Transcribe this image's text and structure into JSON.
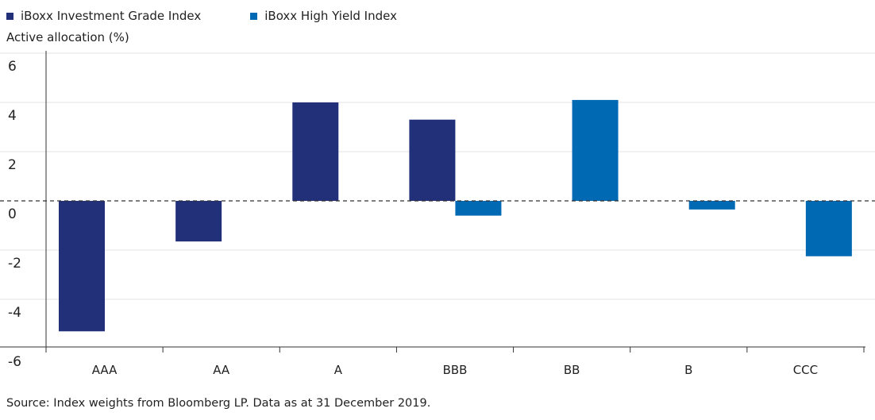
{
  "chart_data": {
    "type": "bar",
    "title": "",
    "xlabel": "",
    "ylabel": "Active allocation (%)",
    "categories": [
      "AAA",
      "AA",
      "A",
      "BBB",
      "BB",
      "B",
      "CCC"
    ],
    "series": [
      {
        "name": "iBoxx Investment Grade Index",
        "color": "#22307a",
        "values": [
          -5.3,
          -1.65,
          4.0,
          3.3,
          null,
          null,
          null
        ]
      },
      {
        "name": "iBoxx High Yield Index",
        "color": "#0069b4",
        "values": [
          null,
          null,
          null,
          -0.6,
          4.1,
          -0.35,
          -2.25
        ]
      }
    ],
    "ylim": [
      -6,
      6
    ],
    "yticks": [
      6,
      4,
      2,
      0,
      -2,
      -4,
      -6
    ],
    "reference_line": {
      "y": 0,
      "style": "dashed"
    },
    "grid": true,
    "legend": "top-left"
  },
  "source_note": "Source: Index weights from Bloomberg LP. Data as at 31 December 2019."
}
